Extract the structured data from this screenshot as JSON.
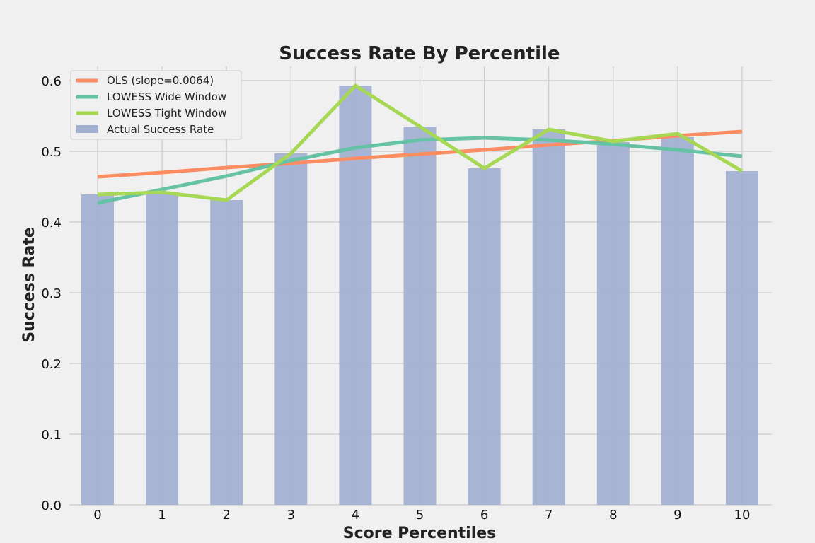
{
  "chart_data": {
    "type": "bar",
    "title": "Success Rate By Percentile",
    "xlabel": "Score Percentiles",
    "ylabel": "Success Rate",
    "categories": [
      "0",
      "1",
      "2",
      "3",
      "4",
      "5",
      "6",
      "7",
      "8",
      "9",
      "10"
    ],
    "x": [
      0,
      1,
      2,
      3,
      4,
      5,
      6,
      7,
      8,
      9,
      10
    ],
    "ylim": [
      0,
      0.62
    ],
    "yticks": [
      "0.0",
      "0.1",
      "0.2",
      "0.3",
      "0.4",
      "0.5",
      "0.6"
    ],
    "grid": true,
    "legend_position": "top-left",
    "bars": {
      "name": "Actual Success Rate",
      "color": "#a2b0d2",
      "values": [
        0.439,
        0.442,
        0.431,
        0.497,
        0.593,
        0.535,
        0.476,
        0.531,
        0.513,
        0.52,
        0.472
      ]
    },
    "series": [
      {
        "name": "OLS (slope=0.0064)",
        "type": "line",
        "color": "#fc8d62",
        "values": [
          0.464,
          0.47,
          0.477,
          0.483,
          0.49,
          0.496,
          0.502,
          0.509,
          0.515,
          0.522,
          0.528
        ]
      },
      {
        "name": "LOWESS Wide Window",
        "type": "line",
        "color": "#66c2a5",
        "values": [
          0.427,
          0.446,
          0.465,
          0.487,
          0.505,
          0.516,
          0.519,
          0.516,
          0.51,
          0.502,
          0.493
        ]
      },
      {
        "name": "LOWESS Tight Window",
        "type": "line",
        "color": "#a6d854",
        "values": [
          0.439,
          0.442,
          0.431,
          0.497,
          0.593,
          0.535,
          0.476,
          0.531,
          0.514,
          0.525,
          0.472
        ]
      }
    ]
  }
}
